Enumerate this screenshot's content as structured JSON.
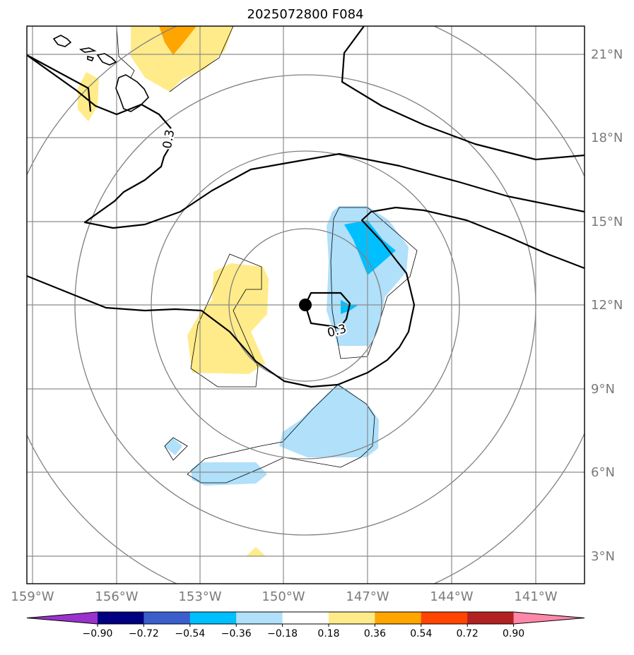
{
  "title": "2025072800 F084",
  "longitude_ticks": [
    "159°W",
    "156°W",
    "153°W",
    "150°W",
    "147°W",
    "144°W",
    "141°W"
  ],
  "latitude_ticks": [
    "21°N",
    "18°N",
    "15°N",
    "12°N",
    "9°N",
    "6°N",
    "3°N"
  ],
  "contour_labels": [
    "0.3",
    "0.3"
  ],
  "storm_center": {
    "lon": -149.0,
    "lat": 12.0
  },
  "colorbar": {
    "labels": [
      "−0.90",
      "−0.72",
      "−0.54",
      "−0.36",
      "−0.18",
      "0.18",
      "0.36",
      "0.54",
      "0.72",
      "0.90"
    ],
    "colors": [
      "#9933cc",
      "#000080",
      "#3a5fcd",
      "#00bfff",
      "#b0e0fa",
      "#ffffff",
      "#ffeb8a",
      "#ffa500",
      "#ff4500",
      "#b22222",
      "#ff88aa"
    ]
  },
  "colors": {
    "light_blue": "#b0e0fa",
    "deep_sky_blue": "#00bfff",
    "light_yellow": "#ffeb8a",
    "orange": "#ffa500"
  }
}
